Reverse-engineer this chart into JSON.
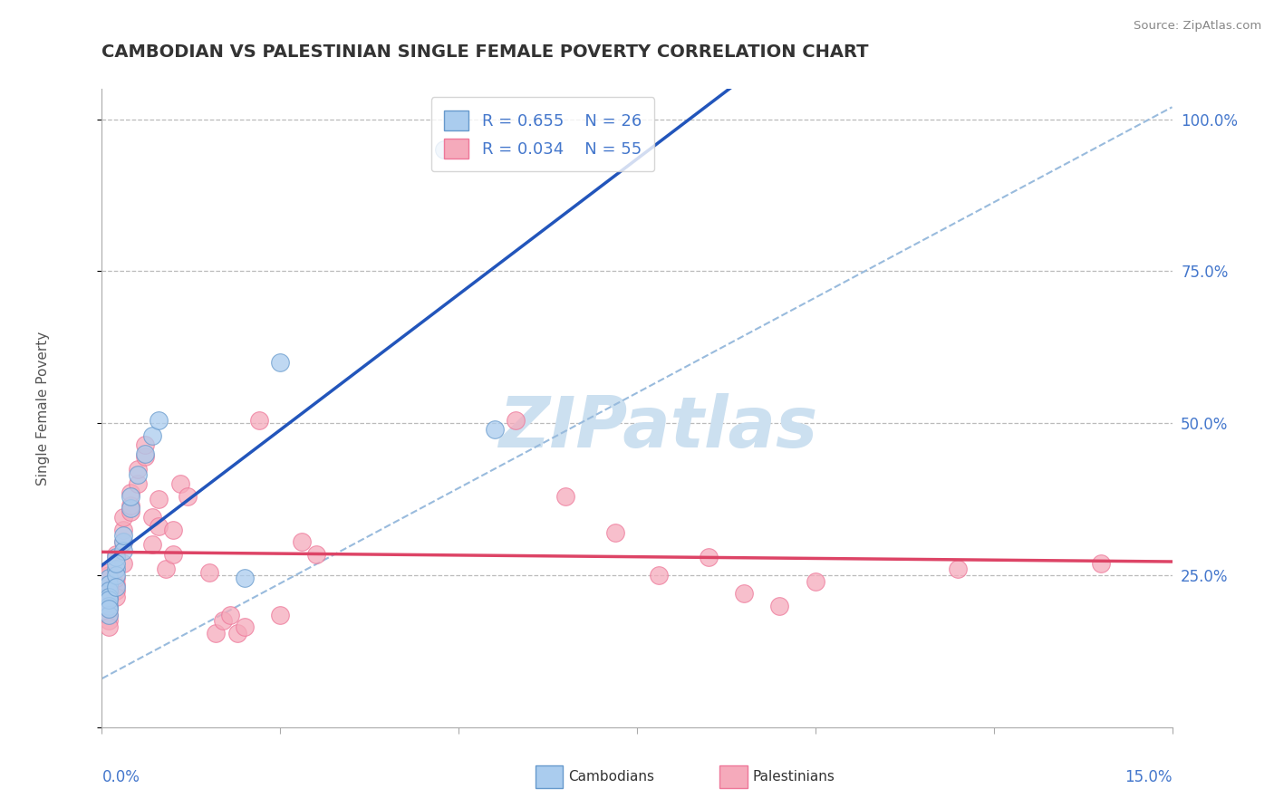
{
  "title": "CAMBODIAN VS PALESTINIAN SINGLE FEMALE POVERTY CORRELATION CHART",
  "source": "Source: ZipAtlas.com",
  "ylabel": "Single Female Poverty",
  "xmin": 0.0,
  "xmax": 0.15,
  "ymin": 0.0,
  "ymax": 1.05,
  "legend_r_blue": "R = 0.655",
  "legend_n_blue": "N = 26",
  "legend_r_pink": "R = 0.034",
  "legend_n_pink": "N = 55",
  "blue_fill": "#AACCEE",
  "pink_fill": "#F5AABB",
  "blue_edge": "#6699CC",
  "pink_edge": "#EE7799",
  "blue_line": "#2255BB",
  "pink_line": "#DD4466",
  "dash_line": "#99BBDD",
  "grid_color": "#BBBBBB",
  "title_color": "#333333",
  "axis_color": "#4477CC",
  "watermark_color": "#CCE0F0",
  "cambodian_x": [
    0.001,
    0.001,
    0.001,
    0.001,
    0.001,
    0.001,
    0.002,
    0.002,
    0.002,
    0.003,
    0.003,
    0.004,
    0.004,
    0.005,
    0.006,
    0.007,
    0.008,
    0.02,
    0.025,
    0.048,
    0.055,
    0.001,
    0.002,
    0.003,
    0.002,
    0.001
  ],
  "cambodian_y": [
    0.245,
    0.235,
    0.225,
    0.215,
    0.2,
    0.185,
    0.26,
    0.25,
    0.28,
    0.305,
    0.29,
    0.36,
    0.38,
    0.415,
    0.45,
    0.48,
    0.505,
    0.245,
    0.6,
    0.95,
    0.49,
    0.21,
    0.23,
    0.315,
    0.27,
    0.195
  ],
  "palestinian_x": [
    0.001,
    0.001,
    0.001,
    0.001,
    0.001,
    0.001,
    0.001,
    0.001,
    0.001,
    0.001,
    0.002,
    0.002,
    0.002,
    0.002,
    0.002,
    0.003,
    0.003,
    0.003,
    0.003,
    0.004,
    0.004,
    0.004,
    0.005,
    0.005,
    0.006,
    0.006,
    0.007,
    0.007,
    0.008,
    0.008,
    0.009,
    0.01,
    0.01,
    0.011,
    0.012,
    0.015,
    0.016,
    0.017,
    0.018,
    0.019,
    0.02,
    0.022,
    0.025,
    0.028,
    0.03,
    0.058,
    0.065,
    0.072,
    0.078,
    0.085,
    0.09,
    0.095,
    0.1,
    0.12,
    0.14
  ],
  "palestinian_y": [
    0.245,
    0.235,
    0.22,
    0.21,
    0.195,
    0.185,
    0.25,
    0.255,
    0.175,
    0.165,
    0.225,
    0.235,
    0.245,
    0.215,
    0.285,
    0.305,
    0.325,
    0.345,
    0.27,
    0.355,
    0.365,
    0.385,
    0.4,
    0.425,
    0.445,
    0.465,
    0.345,
    0.3,
    0.375,
    0.33,
    0.26,
    0.285,
    0.325,
    0.4,
    0.38,
    0.255,
    0.155,
    0.175,
    0.185,
    0.155,
    0.165,
    0.505,
    0.185,
    0.305,
    0.285,
    0.505,
    0.38,
    0.32,
    0.25,
    0.28,
    0.22,
    0.2,
    0.24,
    0.26,
    0.27
  ]
}
